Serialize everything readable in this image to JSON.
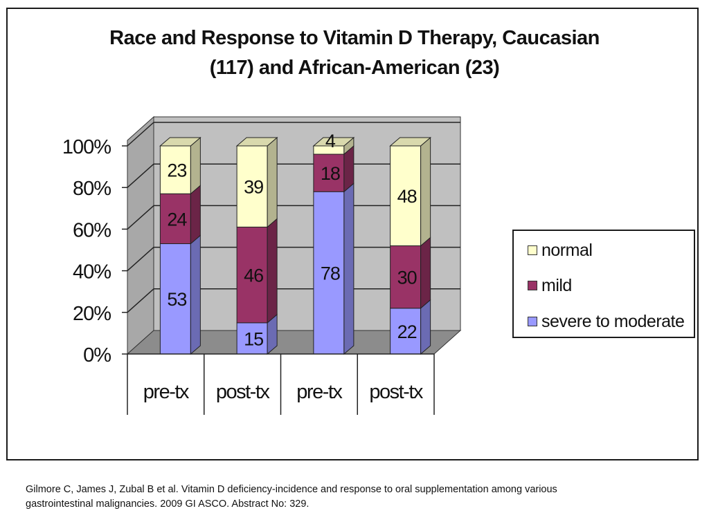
{
  "chart_data": {
    "type": "bar",
    "stacked": true,
    "three_d": true,
    "title_lines": [
      "Race and Response to Vitamin D Therapy, Caucasian",
      "(117) and African-American  (23)"
    ],
    "categories": [
      "pre-tx",
      "post-tx",
      "pre-tx",
      "post-tx"
    ],
    "series": [
      {
        "name": "severe to moderate",
        "values": [
          53,
          15,
          78,
          22
        ],
        "color": "#9999ff"
      },
      {
        "name": "mild",
        "values": [
          24,
          46,
          18,
          30
        ],
        "color": "#993366"
      },
      {
        "name": "normal",
        "values": [
          23,
          39,
          4,
          48
        ],
        "color": "#ffffcc"
      }
    ],
    "legend_order": [
      "normal",
      "mild",
      "severe to moderate"
    ],
    "y_ticks": [
      "0%",
      "20%",
      "40%",
      "60%",
      "80%",
      "100%"
    ],
    "ylim": [
      0,
      100
    ],
    "grid": true,
    "legend_position": "right"
  },
  "citation_lines": [
    "Gilmore C, James J, Zubal B et al. Vitamin D deficiency-incidence and response to oral supplementation among various",
    "gastrointestinal malignancies. 2009 GI ASCO. Abstract No: 329."
  ]
}
